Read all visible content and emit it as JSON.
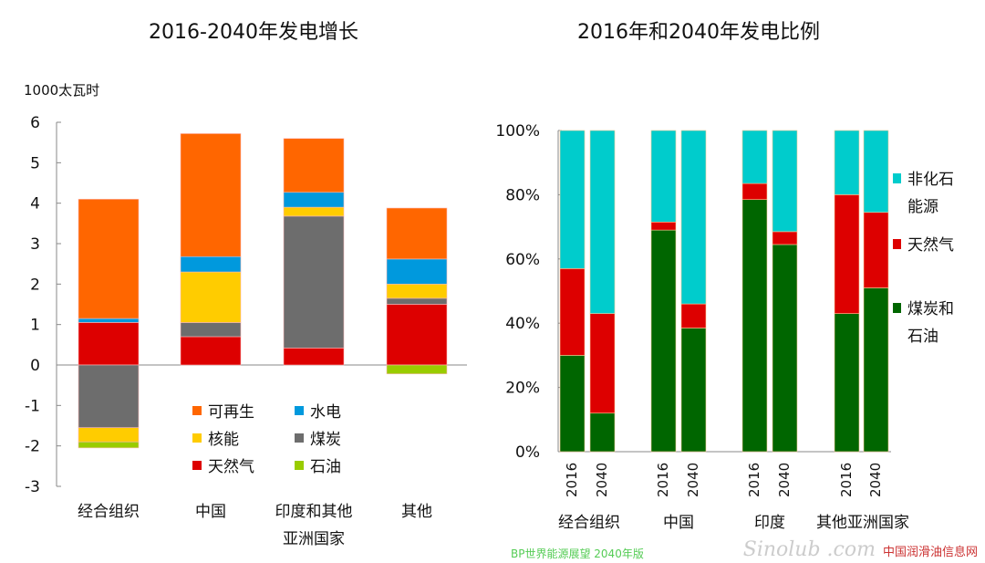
{
  "chart_data": [
    {
      "type": "bar",
      "stacked": true,
      "title": "2016-2040年发电增长",
      "ylabel": "1000太瓦时",
      "ylim": [
        -3,
        6
      ],
      "yticks": [
        6,
        5,
        4,
        3,
        2,
        1,
        0,
        -1,
        -2,
        -3
      ],
      "categories": [
        "经合组织",
        "中国",
        "印度和其他\n亚洲国家",
        "其他"
      ],
      "category_lines": [
        [
          "经合组织"
        ],
        [
          "中国"
        ],
        [
          "印度和其他",
          "亚洲国家"
        ],
        [
          "其他"
        ]
      ],
      "series": [
        {
          "name": "天然气",
          "color": "#dd0000",
          "values": [
            1.05,
            0.7,
            0.42,
            1.5
          ]
        },
        {
          "name": "煤炭",
          "color": "#6d6d6d",
          "values": [
            -1.55,
            0.35,
            3.26,
            0.15
          ]
        },
        {
          "name": "核能",
          "color": "#ffcc00",
          "values": [
            -0.35,
            1.25,
            0.22,
            0.35
          ]
        },
        {
          "name": "水电",
          "color": "#0099dd",
          "values": [
            0.1,
            0.38,
            0.37,
            0.62
          ]
        },
        {
          "name": "可再生",
          "color": "#ff6600",
          "values": [
            2.95,
            3.04,
            1.33,
            1.26
          ]
        },
        {
          "name": "石油",
          "color": "#99cc00",
          "values": [
            -0.15,
            0,
            0,
            -0.22
          ]
        }
      ],
      "legend_order": [
        "可再生",
        "水电",
        "核能",
        "煤炭",
        "天然气",
        "石油"
      ],
      "legend": "inside-bottom"
    },
    {
      "type": "bar",
      "stacked": true,
      "title": "2016年和2040年发电比例",
      "ylim": [
        0,
        100
      ],
      "yticks": [
        "0%",
        "20%",
        "40%",
        "60%",
        "80%",
        "100%"
      ],
      "groups": [
        "经合组织",
        "中国",
        "印度",
        "其他亚洲国家"
      ],
      "years": [
        "2016",
        "2040"
      ],
      "series": [
        {
          "name": "煤炭和石油",
          "label_lines": [
            "煤炭和",
            "石油"
          ],
          "color": "#006600",
          "values": [
            30,
            12,
            69,
            38.5,
            78.5,
            64.5,
            43,
            51
          ]
        },
        {
          "name": "天然气",
          "label_lines": [
            "天然气"
          ],
          "color": "#dd0000",
          "values": [
            27,
            31,
            2.5,
            7.5,
            5,
            4,
            37,
            23.5
          ]
        },
        {
          "name": "非化石能源",
          "label_lines": [
            "非化石",
            "能源"
          ],
          "color": "#00cccc",
          "values": [
            43,
            57,
            28.5,
            54,
            16.5,
            31.5,
            20,
            25.5
          ]
        }
      ],
      "legend": "right"
    }
  ],
  "watermark": {
    "logo": "Sinolub .com",
    "site": "中国润滑油信息网"
  },
  "source": "BP世界能源展望 2040年版"
}
